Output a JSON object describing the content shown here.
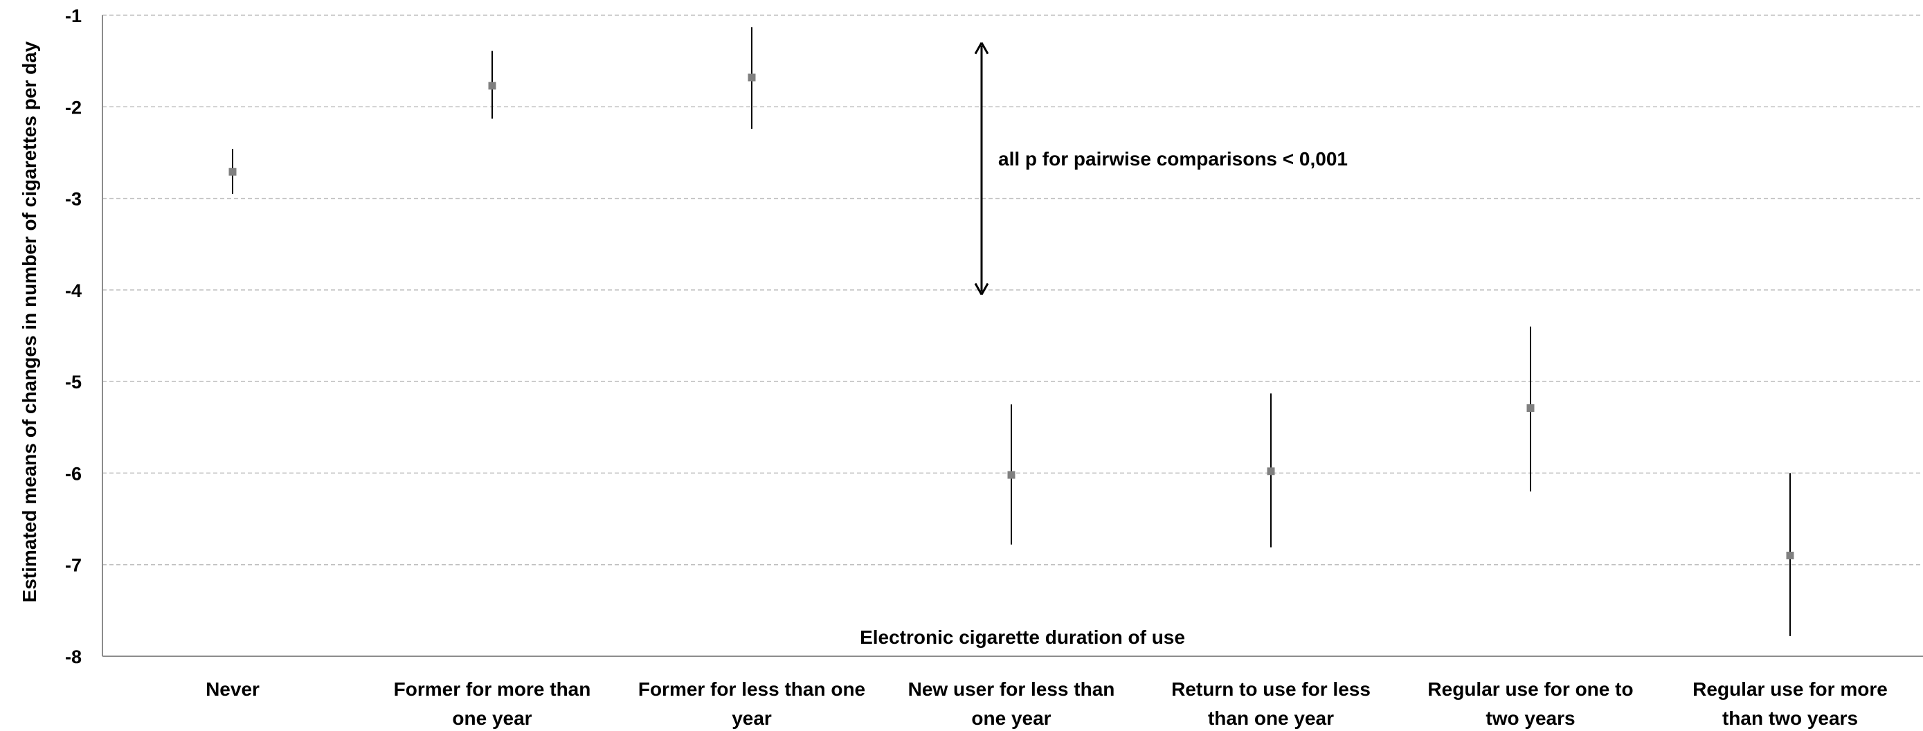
{
  "chart_data": {
    "type": "scatter",
    "title": "",
    "xlabel": "Electronic cigarette duration of use",
    "ylabel": "Estimated means of changes in number of cigarettes per day",
    "ylim": [
      -8,
      -1
    ],
    "yticks": [
      -1,
      -2,
      -3,
      -4,
      -5,
      -6,
      -7,
      -8
    ],
    "grid": "horizontal dashed",
    "legend": "none",
    "marker_color": "#808080",
    "categories": [
      [
        "Never"
      ],
      [
        "Former for more than",
        "one year"
      ],
      [
        "Former for less than one",
        "year"
      ],
      [
        "New user for less than",
        "one year"
      ],
      [
        "Return to use for less",
        "than one year"
      ],
      [
        "Regular use for one to",
        "two years"
      ],
      [
        "Regular use for more",
        "than two years"
      ]
    ],
    "series": [
      {
        "values": [
          -2.71,
          -1.77,
          -1.68,
          -6.02,
          -5.98,
          -5.29,
          -6.9
        ],
        "ci_lower": [
          -2.95,
          -2.13,
          -2.24,
          -6.78,
          -6.81,
          -6.2,
          -7.78
        ],
        "ci_upper": [
          -2.46,
          -1.39,
          -1.13,
          -5.25,
          -5.13,
          -4.4,
          -6.0
        ]
      }
    ],
    "annotation": {
      "text": "all p for pairwise comparisons < 0,001",
      "arrow_from_y": -1.3,
      "arrow_to_y": -4.05
    }
  }
}
